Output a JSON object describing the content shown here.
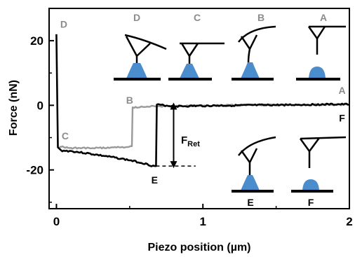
{
  "chart_data": {
    "type": "line",
    "title": "",
    "xlabel": "Piezo position (µm)",
    "ylabel": "Force (nN)",
    "xlim": [
      -0.05,
      2.0
    ],
    "ylim": [
      -32,
      30
    ],
    "x_ticks": [
      0,
      1,
      2
    ],
    "x_tick_labels": [
      "0",
      "1",
      "2"
    ],
    "y_ticks": [
      20,
      0,
      -20
    ],
    "y_tick_labels": [
      "20",
      "0",
      "-20"
    ],
    "grid": false,
    "legend": "none",
    "series": [
      {
        "color": "#000000",
        "points": [
          [
            0.0,
            22.0
          ],
          [
            0.01,
            -13.0
          ],
          [
            0.03,
            -14.0
          ],
          [
            0.1,
            -14.2
          ],
          [
            0.2,
            -14.8
          ],
          [
            0.3,
            -15.5
          ],
          [
            0.4,
            -16.2
          ],
          [
            0.5,
            -17.0
          ],
          [
            0.6,
            -18.0
          ],
          [
            0.66,
            -18.8
          ],
          [
            0.68,
            -18.8
          ],
          [
            0.685,
            0.2
          ],
          [
            0.8,
            -0.3
          ],
          [
            0.95,
            -0.2
          ],
          [
            1.1,
            -0.1
          ],
          [
            1.3,
            0.0
          ],
          [
            1.5,
            0.1
          ],
          [
            1.7,
            0.2
          ],
          [
            1.9,
            0.3
          ],
          [
            2.0,
            0.3
          ]
        ]
      },
      {
        "color": "#999999",
        "points": [
          [
            0.02,
            -12.8
          ],
          [
            0.1,
            -13.2
          ],
          [
            0.2,
            -13.3
          ],
          [
            0.3,
            -13.2
          ],
          [
            0.4,
            -13.0
          ],
          [
            0.5,
            -12.8
          ],
          [
            0.515,
            -12.8
          ],
          [
            0.52,
            -0.6
          ],
          [
            0.6,
            -0.4
          ],
          [
            0.7,
            -0.3
          ],
          [
            0.8,
            -0.3
          ],
          [
            0.9,
            -0.2
          ],
          [
            1.0,
            -0.1
          ],
          [
            1.2,
            0.0
          ],
          [
            1.5,
            0.1
          ],
          [
            1.8,
            0.2
          ],
          [
            2.0,
            0.2
          ]
        ]
      }
    ],
    "point_labels": [
      {
        "label": "D",
        "x": 0.05,
        "y": 24.0,
        "color": "#8c8c8c"
      },
      {
        "label": "C",
        "x": 0.06,
        "y": -10.5,
        "color": "#8c8c8c"
      },
      {
        "label": "B",
        "x": 0.5,
        "y": 0.5,
        "color": "#8c8c8c"
      },
      {
        "label": "A",
        "x": 1.95,
        "y": 3.5,
        "color": "#8c8c8c"
      },
      {
        "label": "E",
        "x": 0.67,
        "y": -24.2,
        "color": "#000000"
      },
      {
        "label": "F",
        "x": 1.95,
        "y": -5.0,
        "color": "#000000"
      }
    ],
    "annotations": {
      "force_label_main": "F",
      "force_label_sub": "Ret",
      "force_arrow": {
        "x": 0.8,
        "y_top": 0.2,
        "y_bottom": -18.8
      },
      "baseline_dash": {
        "x_from": 0.68,
        "x_to": 0.95,
        "y": -18.8
      }
    },
    "inset_labels": [
      "D",
      "C",
      "B",
      "A",
      "E",
      "F"
    ]
  }
}
